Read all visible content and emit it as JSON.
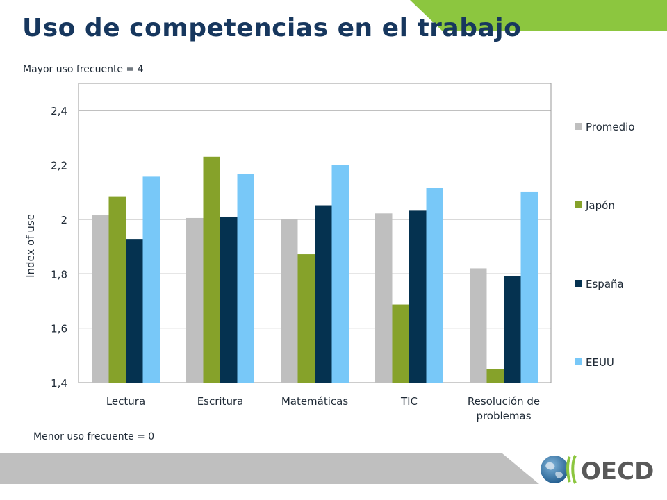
{
  "slide": {
    "title": "Uso de competencias en el trabajo",
    "note_top": "Mayor uso frecuente = 4",
    "note_bottom": "Menor uso frecuente = 0",
    "logo_text": "OECD",
    "colors": {
      "title": "#17375e",
      "accent_green": "#8cc63f",
      "footer_gray": "#bfbfbf"
    }
  },
  "chart_data": {
    "type": "bar",
    "ylabel": "Index of use",
    "ylim": [
      1.4,
      2.5
    ],
    "yticks": [
      1.4,
      1.6,
      1.8,
      2.0,
      2.2,
      2.4
    ],
    "ytick_labels": [
      "1,4",
      "1,6",
      "1,8",
      "2",
      "2,2",
      "2,4"
    ],
    "grid": true,
    "legend_position": "right",
    "categories": [
      {
        "lines": [
          "Lectura"
        ]
      },
      {
        "lines": [
          "Escritura"
        ]
      },
      {
        "lines": [
          "Matemáticas"
        ]
      },
      {
        "lines": [
          "TIC"
        ]
      },
      {
        "lines": [
          "Resolución de",
          "problemas"
        ]
      }
    ],
    "series": [
      {
        "name": "Promedio",
        "color": "#bfbfbf",
        "values": [
          2.015,
          2.005,
          2.0,
          2.022,
          1.82
        ]
      },
      {
        "name": "Japón",
        "color": "#86a22a",
        "values": [
          2.085,
          2.23,
          1.872,
          1.687,
          1.45
        ]
      },
      {
        "name": "España",
        "color": "#053250",
        "values": [
          1.928,
          2.01,
          2.052,
          2.032,
          1.793
        ]
      },
      {
        "name": "EEUU",
        "color": "#78c8f8",
        "values": [
          2.157,
          2.168,
          2.2,
          2.115,
          2.102
        ]
      }
    ]
  }
}
